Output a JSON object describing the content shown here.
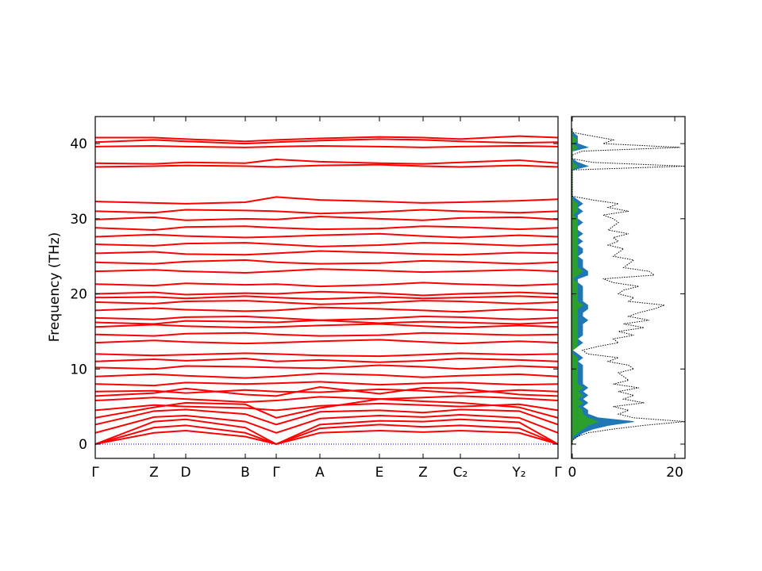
{
  "chart_data": {
    "type": "band_structure",
    "ylabel": "Frequency (THz)",
    "x": [
      0,
      0.74,
      1.14,
      1.89,
      2.28,
      2.83,
      3.58,
      4.13,
      4.6,
      5.34,
      5.83
    ],
    "xlim": [
      0,
      5.83
    ],
    "xticks": [
      {
        "value": 0,
        "label": "Γ"
      },
      {
        "value": 0.74,
        "label": "Z"
      },
      {
        "value": 1.14,
        "label": "D"
      },
      {
        "value": 1.89,
        "label": "B"
      },
      {
        "value": 2.28,
        "label": "Γ"
      },
      {
        "value": 2.83,
        "label": "A"
      },
      {
        "value": 3.58,
        "label": "E"
      },
      {
        "value": 4.13,
        "label": "Z"
      },
      {
        "value": 4.6,
        "label": "C₂"
      },
      {
        "value": 5.34,
        "label": "Y₂"
      },
      {
        "value": 5.83,
        "label": "Γ"
      }
    ],
    "ylim": [
      -1.9,
      43.6
    ],
    "yticks": [
      0,
      10,
      20,
      30,
      40
    ],
    "band_color": "#ff0000",
    "zero_line": {
      "value": 0,
      "color": "#0000ff"
    },
    "bands": [
      {
        "values": [
          0,
          1.5,
          1.8,
          1.0,
          0,
          1.5,
          1.8,
          1.6,
          1.8,
          1.5,
          0
        ]
      },
      {
        "values": [
          0,
          2.2,
          2.5,
          1.5,
          0,
          2.1,
          2.6,
          2.3,
          2.5,
          2.1,
          0
        ]
      },
      {
        "values": [
          0,
          3.0,
          3.3,
          2.2,
          0,
          2.6,
          3.1,
          3.0,
          3.3,
          2.9,
          0
        ]
      },
      {
        "values": [
          1.5,
          3.6,
          3.8,
          3.0,
          1.5,
          3.4,
          3.8,
          3.6,
          3.9,
          3.5,
          1.5
        ]
      },
      {
        "values": [
          2.6,
          4.4,
          4.6,
          4.0,
          2.6,
          4.3,
          4.5,
          4.2,
          4.6,
          4.4,
          2.6
        ]
      },
      {
        "values": [
          3.5,
          4.9,
          5.5,
          5.3,
          3.5,
          4.8,
          6.0,
          5.7,
          5.5,
          4.9,
          3.5
        ]
      },
      {
        "values": [
          4.5,
          5.2,
          5.0,
          4.8,
          4.5,
          5.1,
          5.4,
          5.2,
          5.0,
          5.3,
          4.5
        ]
      },
      {
        "values": [
          5.8,
          6.2,
          6.0,
          5.6,
          5.8,
          6.3,
          6.0,
          6.2,
          6.4,
          6.1,
          5.8
        ]
      },
      {
        "values": [
          6.4,
          6.8,
          7.4,
          6.6,
          6.4,
          7.6,
          6.7,
          7.5,
          7.4,
          6.6,
          6.4
        ]
      },
      {
        "values": [
          7.0,
          7.1,
          6.8,
          7.2,
          7.0,
          6.9,
          7.3,
          7.1,
          6.8,
          7.2,
          7.0
        ]
      },
      {
        "values": [
          8.0,
          7.8,
          8.2,
          8.0,
          8.1,
          8.3,
          7.9,
          8.1,
          8.2,
          7.9,
          8.0
        ]
      },
      {
        "values": [
          9.0,
          9.3,
          9.1,
          8.8,
          9.0,
          9.4,
          9.2,
          8.9,
          9.1,
          9.3,
          9.0
        ]
      },
      {
        "values": [
          10.2,
          10.0,
          10.4,
          10.3,
          10.2,
          10.1,
          10.5,
          10.3,
          10.0,
          10.4,
          10.2
        ]
      },
      {
        "values": [
          11.0,
          11.3,
          11.1,
          11.4,
          11.0,
          11.2,
          10.9,
          11.1,
          11.4,
          11.2,
          11.0
        ]
      },
      {
        "values": [
          12.0,
          11.8,
          11.9,
          12.1,
          12.0,
          11.8,
          11.7,
          11.9,
          12.1,
          11.9,
          12.0
        ]
      },
      {
        "values": [
          13.5,
          13.8,
          13.6,
          13.4,
          13.5,
          13.7,
          13.9,
          13.6,
          13.4,
          13.7,
          13.5
        ]
      },
      {
        "values": [
          14.6,
          14.4,
          14.7,
          14.8,
          14.6,
          14.4,
          14.5,
          14.8,
          14.7,
          14.5,
          14.6
        ]
      },
      {
        "values": [
          15.6,
          15.9,
          15.7,
          15.5,
          15.6,
          15.8,
          16.0,
          15.7,
          15.5,
          15.8,
          15.6
        ]
      },
      {
        "values": [
          16.2,
          16.0,
          16.4,
          16.3,
          16.2,
          16.5,
          16.1,
          16.3,
          16.2,
          16.0,
          16.2
        ]
      },
      {
        "values": [
          16.8,
          16.6,
          16.9,
          17.0,
          16.8,
          16.5,
          16.7,
          17.0,
          16.9,
          16.6,
          16.8
        ]
      },
      {
        "values": [
          17.8,
          18.1,
          17.9,
          17.7,
          17.8,
          18.2,
          18.0,
          17.8,
          17.6,
          18.0,
          17.8
        ]
      },
      {
        "values": [
          18.9,
          18.7,
          19.0,
          19.1,
          18.9,
          18.6,
          18.8,
          19.1,
          19.0,
          18.7,
          18.9
        ]
      },
      {
        "values": [
          19.5,
          19.6,
          19.4,
          19.7,
          19.5,
          19.3,
          19.6,
          19.4,
          19.5,
          19.7,
          19.5
        ]
      },
      {
        "values": [
          20.0,
          20.2,
          19.9,
          20.1,
          20.0,
          20.3,
          20.1,
          19.8,
          20.0,
          20.2,
          20.0
        ]
      },
      {
        "values": [
          21.3,
          21.1,
          21.4,
          21.2,
          21.3,
          21.0,
          21.2,
          21.5,
          21.3,
          21.1,
          21.3
        ]
      },
      {
        "values": [
          23.0,
          23.2,
          23.0,
          22.8,
          23.0,
          23.3,
          23.1,
          22.9,
          23.0,
          23.2,
          23.0
        ]
      },
      {
        "values": [
          24.2,
          24.0,
          24.3,
          24.5,
          24.2,
          24.0,
          24.1,
          24.4,
          24.3,
          24.0,
          24.2
        ]
      },
      {
        "values": [
          25.4,
          25.6,
          25.3,
          25.2,
          25.4,
          25.7,
          25.5,
          25.3,
          25.2,
          25.5,
          25.4
        ]
      },
      {
        "values": [
          26.6,
          26.4,
          26.7,
          26.8,
          26.6,
          26.3,
          26.5,
          26.8,
          26.7,
          26.4,
          26.6
        ]
      },
      {
        "values": [
          27.6,
          27.9,
          27.7,
          27.5,
          27.6,
          27.8,
          28.0,
          27.7,
          27.5,
          27.8,
          27.6
        ]
      },
      {
        "values": [
          28.8,
          28.5,
          28.9,
          29.0,
          28.8,
          28.6,
          28.7,
          29.0,
          28.9,
          28.6,
          28.8
        ]
      },
      {
        "values": [
          29.9,
          30.2,
          29.8,
          30.0,
          29.9,
          30.3,
          30.0,
          29.8,
          30.1,
          30.2,
          29.9
        ]
      },
      {
        "values": [
          31.0,
          30.8,
          31.2,
          31.1,
          31.0,
          30.7,
          30.9,
          31.2,
          31.0,
          30.8,
          31.0
        ]
      },
      {
        "values": [
          32.3,
          32.1,
          32.0,
          32.2,
          32.9,
          32.5,
          32.3,
          32.1,
          32.2,
          32.4,
          32.6
        ]
      },
      {
        "values": [
          36.9,
          37.0,
          37.1,
          37.0,
          36.9,
          37.1,
          37.2,
          37.0,
          36.9,
          37.1,
          36.9
        ]
      },
      {
        "values": [
          37.4,
          37.3,
          37.5,
          37.4,
          37.9,
          37.6,
          37.4,
          37.3,
          37.5,
          37.8,
          37.4
        ]
      },
      {
        "values": [
          39.6,
          39.7,
          39.6,
          39.5,
          39.6,
          39.7,
          39.6,
          39.5,
          39.6,
          39.7,
          39.6
        ]
      },
      {
        "values": [
          40.2,
          40.5,
          40.3,
          40.0,
          40.2,
          40.4,
          40.6,
          40.5,
          40.3,
          40.1,
          40.2
        ]
      },
      {
        "values": [
          40.8,
          40.8,
          40.6,
          40.3,
          40.5,
          40.7,
          40.9,
          40.8,
          40.6,
          41.0,
          40.8
        ]
      }
    ],
    "dos": {
      "xlim": [
        -0.15,
        22
      ],
      "xticks": [
        0,
        20
      ],
      "frequencies": [
        0,
        0.5,
        1,
        1.5,
        2,
        2.5,
        3,
        3.5,
        4,
        4.5,
        5,
        5.5,
        6,
        6.5,
        7,
        7.5,
        8,
        8.5,
        9,
        9.5,
        10,
        10.5,
        11,
        11.5,
        12,
        12.5,
        13,
        13.5,
        14,
        14.5,
        15,
        15.5,
        16,
        16.5,
        17,
        17.5,
        18,
        18.5,
        19,
        19.5,
        20,
        20.5,
        21,
        21.5,
        22,
        22.5,
        23,
        23.5,
        24,
        24.5,
        25,
        25.5,
        26,
        26.5,
        27,
        27.5,
        28,
        28.5,
        29,
        29.5,
        30,
        30.5,
        31,
        31.5,
        32,
        32.5,
        33,
        33.5,
        34,
        34.5,
        35,
        35.5,
        36,
        36.5,
        37,
        37.5,
        38,
        38.5,
        39,
        39.5,
        40,
        40.5,
        41,
        41.5,
        42
      ],
      "total": {
        "color": "#000000",
        "values": [
          0,
          0,
          1,
          3,
          8,
          14,
          22,
          12,
          9,
          11,
          8,
          14,
          10,
          12,
          9,
          13,
          8,
          11,
          10,
          9,
          12,
          11,
          7,
          9,
          3,
          2,
          5,
          9,
          8,
          12,
          9,
          14,
          10,
          15,
          11,
          13,
          16,
          18,
          11,
          12,
          9,
          10,
          13,
          8,
          6,
          16,
          15,
          10,
          11,
          12,
          8,
          9,
          10,
          7,
          9,
          8,
          11,
          7,
          8,
          9,
          8,
          6,
          11,
          7,
          9,
          4,
          0,
          0,
          0,
          0,
          0,
          0,
          0,
          0,
          22,
          4,
          0,
          0,
          2,
          21,
          6,
          8,
          4,
          0,
          0
        ]
      },
      "partials": [
        {
          "color": "#1f77b4",
          "values": [
            0,
            0,
            1,
            2,
            4,
            7,
            12,
            5,
            3,
            3,
            2,
            3,
            2,
            3,
            2,
            3,
            2,
            2,
            2,
            2,
            2,
            2,
            1,
            2,
            1,
            0,
            1,
            2,
            1,
            2,
            2,
            2,
            2,
            3,
            2,
            2,
            3,
            3,
            2,
            2,
            2,
            2,
            2,
            1,
            1,
            3,
            3,
            2,
            2,
            2,
            1,
            2,
            2,
            1,
            2,
            1,
            2,
            1,
            1,
            2,
            1,
            1,
            2,
            1,
            2,
            1,
            0,
            0,
            0,
            0,
            0,
            0,
            0,
            0,
            3,
            1,
            0,
            0,
            0,
            3,
            1,
            1,
            1,
            0,
            0
          ]
        },
        {
          "color": "#2ca02c",
          "values": [
            0,
            0,
            0,
            1,
            2,
            3,
            5,
            3,
            2,
            2,
            1,
            2,
            1,
            2,
            1,
            2,
            1,
            1,
            1,
            1,
            1,
            1,
            1,
            1,
            0,
            0,
            1,
            1,
            1,
            1,
            1,
            1,
            1,
            1,
            1,
            1,
            1,
            2,
            1,
            1,
            1,
            1,
            1,
            1,
            0,
            1,
            2,
            1,
            1,
            1,
            1,
            1,
            1,
            1,
            1,
            1,
            1,
            1,
            1,
            1,
            1,
            0,
            1,
            1,
            1,
            0,
            0,
            0,
            0,
            0,
            0,
            0,
            0,
            0,
            1,
            0,
            0,
            0,
            0,
            1,
            0,
            1,
            0,
            0,
            0
          ]
        }
      ]
    }
  }
}
